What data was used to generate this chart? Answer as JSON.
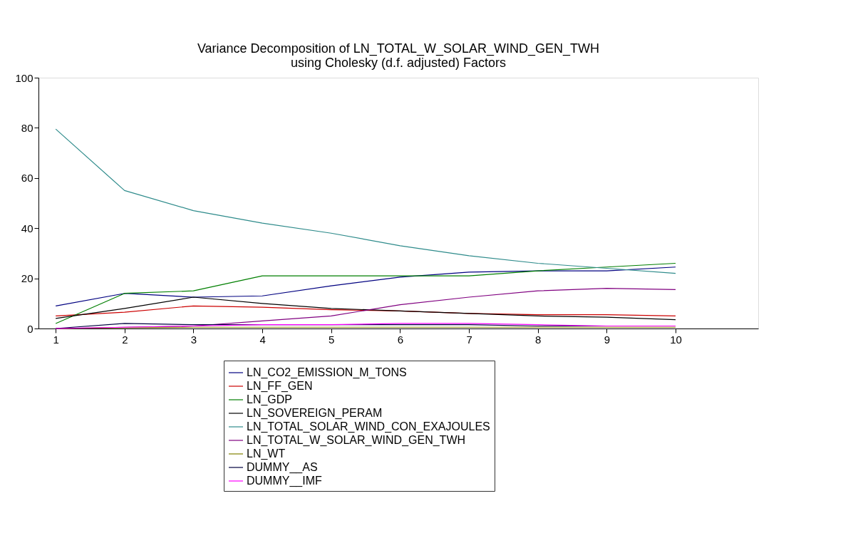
{
  "chart_data": {
    "type": "line",
    "title": "Variance Decomposition of LN_TOTAL_W_SOLAR_WIND_GEN_TWH",
    "subtitle": "using Cholesky (d.f. adjusted) Factors",
    "x": [
      1,
      2,
      3,
      4,
      5,
      6,
      7,
      8,
      9,
      10
    ],
    "xlim": [
      0.75,
      11.2
    ],
    "xticks": [
      1,
      2,
      3,
      4,
      5,
      6,
      7,
      8,
      9,
      10
    ],
    "ylim": [
      0,
      100
    ],
    "yticks": [
      0,
      20,
      40,
      60,
      80,
      100
    ],
    "grid": false,
    "legend": "bottom",
    "marker": "none",
    "line_style": "solid",
    "series": [
      {
        "name": "LN_CO2_EMISSION_M_TONS",
        "color": "#000080",
        "values": [
          9,
          14,
          12.5,
          13,
          17,
          20.5,
          22.5,
          23,
          23,
          24.5
        ]
      },
      {
        "name": "LN_FF_GEN",
        "color": "#cc0000",
        "values": [
          5,
          6.5,
          9,
          8.5,
          7.5,
          7,
          6,
          5.5,
          5.5,
          5
        ]
      },
      {
        "name": "LN_GDP",
        "color": "#007f00",
        "values": [
          2,
          14,
          15,
          21,
          21,
          21,
          21,
          23,
          24.5,
          26
        ]
      },
      {
        "name": "LN_SOVEREIGN_PERAM",
        "color": "#000000",
        "values": [
          4,
          8,
          12.5,
          10,
          8,
          7,
          6,
          5,
          4.5,
          3.5
        ]
      },
      {
        "name": "LN_TOTAL_SOLAR_WIND_CON_EXAJOULES",
        "color": "#2e8b8b",
        "values": [
          79.5,
          55,
          47,
          42,
          38,
          33,
          29,
          26,
          24,
          22
        ]
      },
      {
        "name": "LN_TOTAL_W_SOLAR_WIND_GEN_TWH",
        "color": "#800080",
        "values": [
          0,
          0.5,
          1,
          3,
          5,
          9.5,
          12.5,
          15,
          16,
          15.5
        ]
      },
      {
        "name": "LN_WT",
        "color": "#808000",
        "values": [
          0,
          0.3,
          0.5,
          0.5,
          0.5,
          0.5,
          0.5,
          0.5,
          0.5,
          0.5
        ]
      },
      {
        "name": "DUMMY__AS",
        "color": "#000040",
        "values": [
          0,
          2,
          1.5,
          1.5,
          1.5,
          1.5,
          1.5,
          1,
          1,
          1
        ]
      },
      {
        "name": "DUMMY__IMF",
        "color": "#ff00ff",
        "values": [
          0,
          0.5,
          1,
          1.5,
          1.5,
          2,
          2,
          1.5,
          1,
          1
        ]
      }
    ]
  }
}
